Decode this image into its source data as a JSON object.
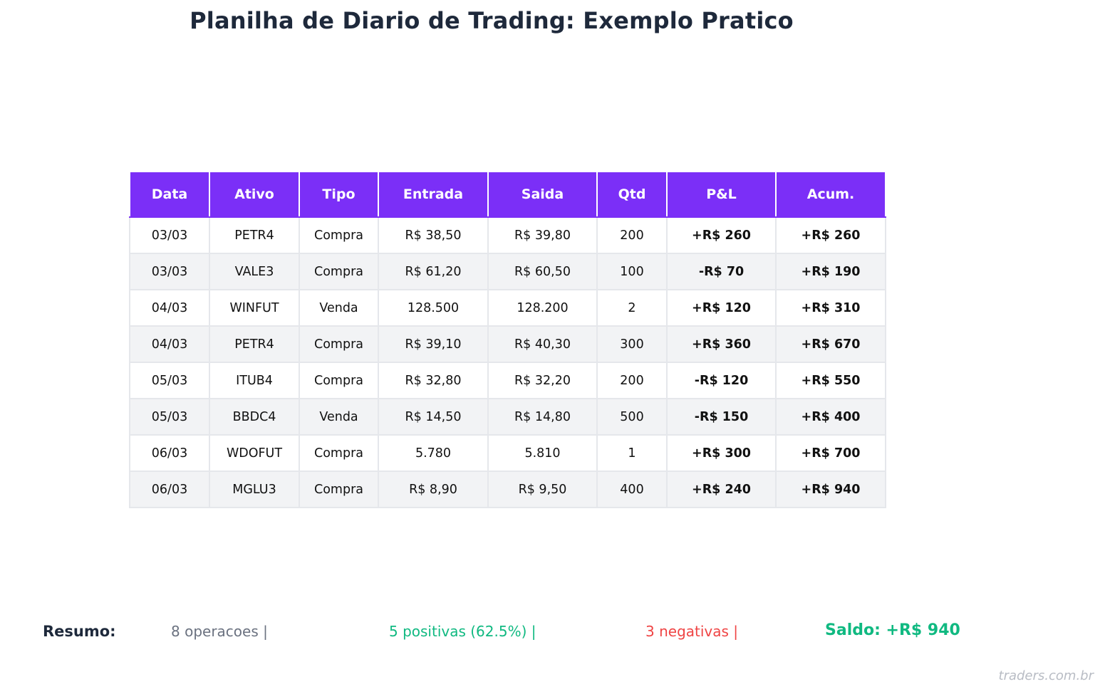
{
  "chart_data": {
    "type": "table",
    "title": "Planilha de Diario de Trading: Exemplo Pratico",
    "columns": [
      "Data",
      "Ativo",
      "Tipo",
      "Entrada",
      "Saida",
      "Qtd",
      "P&L",
      "Acum."
    ],
    "rows": [
      [
        "03/03",
        "PETR4",
        "Compra",
        "R$ 38,50",
        "R$ 39,80",
        "200",
        "+R$ 260",
        "+R$ 260"
      ],
      [
        "03/03",
        "VALE3",
        "Compra",
        "R$ 61,20",
        "R$ 60,50",
        "100",
        "-R$ 70",
        "+R$ 190"
      ],
      [
        "04/03",
        "WINFUT",
        "Venda",
        "128.500",
        "128.200",
        "2",
        "+R$ 120",
        "+R$ 310"
      ],
      [
        "04/03",
        "PETR4",
        "Compra",
        "R$ 39,10",
        "R$ 40,30",
        "300",
        "+R$ 360",
        "+R$ 670"
      ],
      [
        "05/03",
        "ITUB4",
        "Compra",
        "R$ 32,80",
        "R$ 32,20",
        "200",
        "-R$ 120",
        "+R$ 550"
      ],
      [
        "05/03",
        "BBDC4",
        "Venda",
        "R$ 14,50",
        "R$ 14,80",
        "500",
        "-R$ 150",
        "+R$ 400"
      ],
      [
        "06/03",
        "WDOFUT",
        "Compra",
        "5.780",
        "5.810",
        "1",
        "+R$ 300",
        "+R$ 700"
      ],
      [
        "06/03",
        "MGLU3",
        "Compra",
        "R$ 8,90",
        "R$ 9,50",
        "400",
        "+R$ 240",
        "+R$ 940"
      ]
    ],
    "pnl_values": [
      260,
      -70,
      120,
      360,
      -120,
      -150,
      300,
      240
    ],
    "cumulative_values": [
      260,
      190,
      310,
      670,
      550,
      400,
      700,
      940
    ]
  },
  "summary": {
    "label": "Resumo:",
    "operations": "8 operacoes  |",
    "positive": "5 positivas (62.5%)  |",
    "negative": "3 negativas  |",
    "balance": "Saldo: +R$ 940"
  },
  "watermark": "traders.com.br",
  "colors": {
    "header_bg": "#7b2ff7",
    "positive": "#10b981",
    "negative": "#ef4444",
    "title": "#1e293b",
    "row_alt": "#f2f3f5"
  }
}
